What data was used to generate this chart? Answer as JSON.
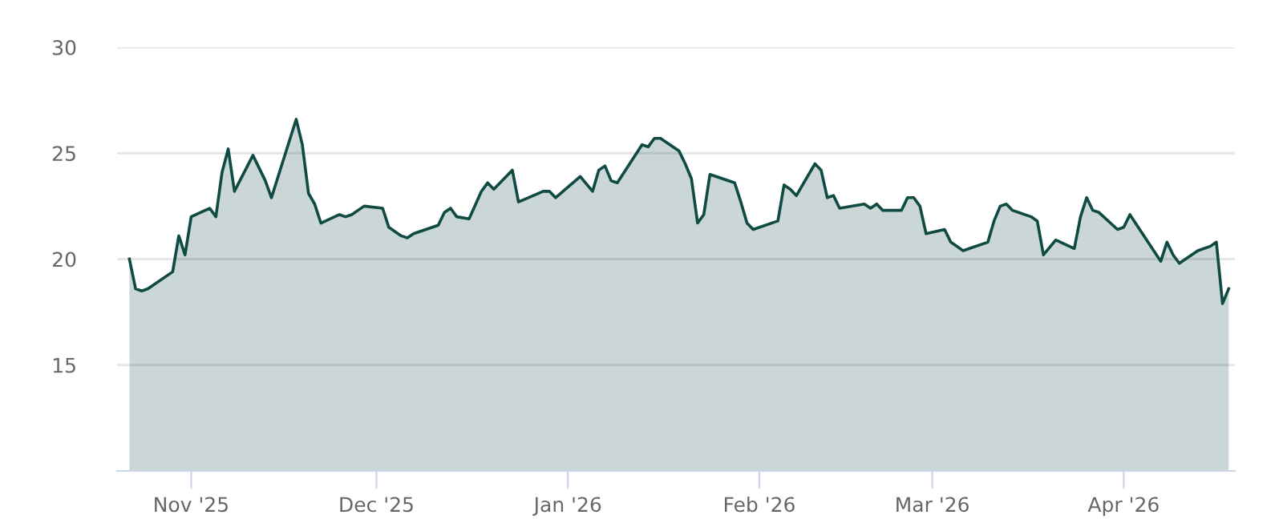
{
  "chart_data": {
    "type": "area",
    "x": [
      "2025-10-22",
      "2025-10-23",
      "2025-10-24",
      "2025-10-25",
      "2025-10-29",
      "2025-10-30",
      "2025-10-31",
      "2025-11-01",
      "2025-11-04",
      "2025-11-05",
      "2025-11-06",
      "2025-11-07",
      "2025-11-08",
      "2025-11-11",
      "2025-11-13",
      "2025-11-14",
      "2025-11-18",
      "2025-11-19",
      "2025-11-20",
      "2025-11-21",
      "2025-11-22",
      "2025-11-25",
      "2025-11-26",
      "2025-11-27",
      "2025-11-29",
      "2025-12-02",
      "2025-12-03",
      "2025-12-05",
      "2025-12-06",
      "2025-12-07",
      "2025-12-09",
      "2025-12-11",
      "2025-12-12",
      "2025-12-13",
      "2025-12-14",
      "2025-12-16",
      "2025-12-18",
      "2025-12-19",
      "2025-12-20",
      "2025-12-23",
      "2025-12-24",
      "2025-12-28",
      "2025-12-29",
      "2025-12-30",
      "2026-01-03",
      "2026-01-05",
      "2026-01-06",
      "2026-01-07",
      "2026-01-08",
      "2026-01-09",
      "2026-01-13",
      "2026-01-14",
      "2026-01-15",
      "2026-01-16",
      "2026-01-19",
      "2026-01-20",
      "2026-01-21",
      "2026-01-22",
      "2026-01-23",
      "2026-01-24",
      "2026-01-28",
      "2026-01-29",
      "2026-01-30",
      "2026-01-31",
      "2026-02-04",
      "2026-02-05",
      "2026-02-06",
      "2026-02-07",
      "2026-02-10",
      "2026-02-11",
      "2026-02-12",
      "2026-02-13",
      "2026-02-14",
      "2026-02-18",
      "2026-02-19",
      "2026-02-20",
      "2026-02-21",
      "2026-02-24",
      "2026-02-25",
      "2026-02-26",
      "2026-02-27",
      "2026-02-28",
      "2026-03-03",
      "2026-03-04",
      "2026-03-06",
      "2026-03-07",
      "2026-03-10",
      "2026-03-11",
      "2026-03-12",
      "2026-03-13",
      "2026-03-14",
      "2026-03-17",
      "2026-03-18",
      "2026-03-19",
      "2026-03-21",
      "2026-03-24",
      "2026-03-25",
      "2026-03-26",
      "2026-03-27",
      "2026-03-28",
      "2026-03-31",
      "2026-04-01",
      "2026-04-02",
      "2026-04-07",
      "2026-04-08",
      "2026-04-09",
      "2026-04-10",
      "2026-04-13",
      "2026-04-14",
      "2026-04-15",
      "2026-04-16",
      "2026-04-17",
      "2026-04-18"
    ],
    "series": [
      {
        "color": "#0f4a43",
        "values": [
          20.0,
          18.6,
          18.5,
          18.6,
          19.4,
          21.1,
          20.2,
          22.0,
          22.4,
          22.0,
          24.1,
          25.2,
          23.2,
          24.9,
          23.7,
          22.9,
          26.6,
          25.4,
          23.1,
          22.6,
          21.7,
          22.1,
          22.0,
          22.1,
          22.5,
          22.4,
          21.5,
          21.1,
          21.0,
          21.2,
          21.4,
          21.6,
          22.2,
          22.4,
          22.0,
          21.9,
          23.2,
          23.6,
          23.3,
          24.2,
          22.7,
          23.2,
          23.2,
          22.9,
          23.9,
          23.2,
          24.2,
          24.4,
          23.7,
          23.6,
          25.4,
          25.3,
          25.7,
          25.7,
          25.1,
          24.5,
          23.8,
          21.7,
          22.1,
          24.0,
          23.6,
          22.7,
          21.7,
          21.4,
          21.8,
          23.5,
          23.3,
          23.0,
          24.5,
          24.2,
          22.9,
          23.0,
          22.4,
          22.6,
          22.4,
          22.6,
          22.3,
          22.3,
          22.9,
          22.9,
          22.5,
          21.2,
          21.4,
          20.8,
          20.4,
          20.5,
          20.8,
          21.8,
          22.5,
          22.6,
          22.3,
          22.0,
          21.8,
          20.2,
          20.9,
          20.5,
          22.0,
          22.9,
          22.3,
          22.2,
          21.4,
          21.5,
          22.1,
          19.9,
          20.8,
          20.2,
          19.8,
          20.4,
          20.5,
          20.6,
          20.8,
          17.9,
          18.6
        ]
      }
    ],
    "xlim": [
      "2025-10-20",
      "2026-04-19"
    ],
    "xticks": [
      {
        "value": "2025-11-01",
        "label": "Nov '25"
      },
      {
        "value": "2025-12-01",
        "label": "Dec '25"
      },
      {
        "value": "2026-01-01",
        "label": "Jan '26"
      },
      {
        "value": "2026-02-01",
        "label": "Feb '26"
      },
      {
        "value": "2026-03-01",
        "label": "Mar '26"
      },
      {
        "value": "2026-04-01",
        "label": "Apr '26"
      }
    ],
    "ylim": [
      10,
      30
    ],
    "yticks": [
      15,
      20,
      25,
      30
    ],
    "grid": "y"
  }
}
